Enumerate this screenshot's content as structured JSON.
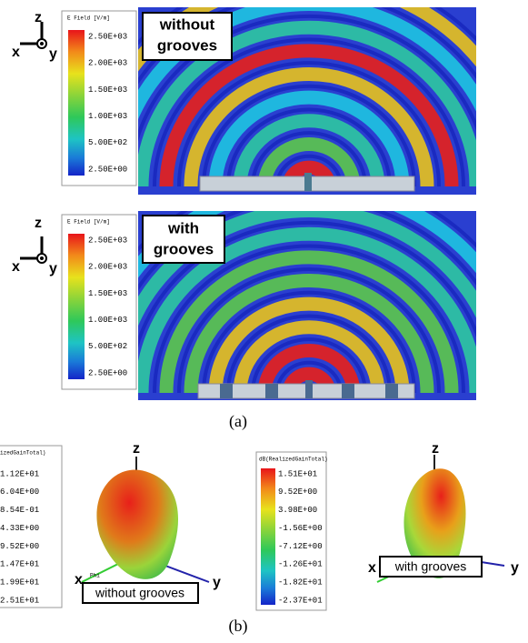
{
  "panel_a": {
    "plots": [
      {
        "axes": {
          "z": "z",
          "x": "x",
          "y": "y"
        },
        "legend": {
          "title": "E Field [V/m]",
          "ticks": [
            "2.50E+03",
            "2.00E+03",
            "1.50E+03",
            "1.00E+03",
            "5.00E+02",
            "2.50E+00"
          ]
        },
        "label": [
          "without",
          "grooves"
        ]
      },
      {
        "axes": {
          "z": "z",
          "x": "x",
          "y": "y"
        },
        "legend": {
          "title": "E Field [V/m]",
          "ticks": [
            "2.50E+03",
            "2.00E+03",
            "1.50E+03",
            "1.00E+03",
            "5.00E+02",
            "2.50E+00"
          ]
        },
        "label": [
          "with",
          "grooves"
        ]
      }
    ],
    "caption": "(a)"
  },
  "panel_b": {
    "plots": [
      {
        "axes": {
          "z": "z",
          "x": "x",
          "y": "y",
          "tag": "Phi"
        },
        "legend": {
          "title": "izedGainTotal)",
          "ticks": [
            "1.12E+01",
            "6.04E+00",
            "8.54E-01",
            "4.33E+00",
            "9.52E+00",
            "1.47E+01",
            "1.99E+01",
            "2.51E+01"
          ]
        },
        "label": "without grooves"
      },
      {
        "axes": {
          "z": "z",
          "x": "x",
          "y": "y"
        },
        "legend": {
          "title": "dB(RealizedGainTotal)",
          "ticks": [
            "1.51E+01",
            "9.52E+00",
            "3.98E+00",
            "-1.56E+00",
            "-7.12E+00",
            "-1.26E+01",
            "-1.82E+01",
            "-2.37E+01"
          ]
        },
        "label": "with grooves"
      }
    ],
    "caption": "(b)"
  }
}
